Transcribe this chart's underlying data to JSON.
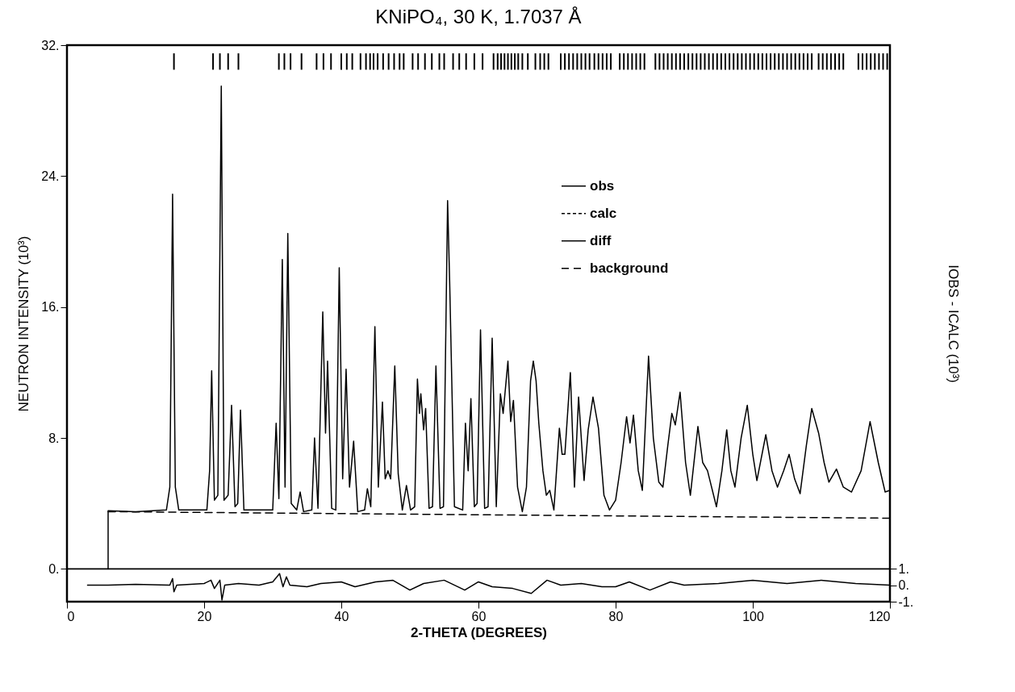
{
  "chart_data": {
    "type": "line",
    "title": "KNiPO₄, 30 K, 1.7037 Å",
    "xlabel": "2-THETA (DEGREES)",
    "ylabel": "NEUTRON INTENSITY (10³)",
    "y2label": "IOBS - ICALC (10³)",
    "xlim": [
      0,
      120
    ],
    "xticks": [
      0,
      20,
      40,
      60,
      80,
      100,
      120
    ],
    "ylim": [
      -2,
      32
    ],
    "yticks": [
      {
        "value": 0,
        "label": "0."
      },
      {
        "value": 8,
        "label": "8."
      },
      {
        "value": 16,
        "label": "16."
      },
      {
        "value": 24,
        "label": "24."
      },
      {
        "value": 32,
        "label": "32."
      }
    ],
    "y2lim": [
      -1,
      32.7
    ],
    "y2ticks": [
      {
        "value": 1,
        "label": "1."
      },
      {
        "value": 0,
        "label": "0."
      },
      {
        "value": -1,
        "label": "-1."
      }
    ],
    "legend": "top right",
    "ref_lines": [
      {
        "axis": "y",
        "value": 0
      }
    ],
    "series": [
      {
        "name": "obs",
        "color": "#000000",
        "line_style": "solid",
        "x": [
          6,
          6,
          10,
          14.5,
          15.0,
          15.4,
          15.8,
          16.3,
          20.4,
          20.8,
          21.1,
          21.5,
          22.0,
          22.5,
          22.9,
          23.5,
          24.0,
          24.5,
          24.9,
          25.3,
          25.8,
          30.0,
          30.5,
          30.9,
          31.4,
          31.8,
          32.2,
          32.7,
          33.5,
          34.0,
          34.5,
          35.7,
          36.1,
          36.6,
          37.3,
          37.7,
          38.0,
          38.6,
          39.2,
          39.7,
          40.2,
          40.7,
          41.2,
          41.8,
          42.4,
          43.4,
          43.8,
          44.3,
          44.9,
          45.4,
          46.0,
          46.4,
          46.8,
          47.2,
          47.8,
          48.3,
          48.9,
          49.5,
          50.1,
          50.7,
          51.1,
          51.4,
          51.6,
          52.0,
          52.3,
          52.8,
          53.3,
          53.8,
          54.4,
          54.9,
          55.5,
          55.8,
          56.5,
          57.7,
          58.1,
          58.5,
          58.9,
          59.4,
          59.8,
          60.3,
          60.9,
          61.4,
          62.0,
          62.6,
          63.2,
          63.6,
          64.3,
          64.7,
          65.1,
          65.7,
          66.4,
          67.0,
          67.6,
          68.0,
          68.4,
          68.8,
          69.4,
          69.9,
          70.4,
          71.0,
          71.8,
          72.2,
          72.6,
          73.4,
          74.0,
          74.6,
          75.4,
          76.0,
          76.7,
          77.5,
          78.3,
          79.1,
          80.0,
          80.8,
          81.6,
          82.1,
          82.6,
          83.3,
          83.9,
          84.8,
          85.5,
          86.3,
          86.9,
          87.6,
          88.2,
          88.7,
          89.4,
          90.2,
          90.9,
          92.0,
          92.7,
          93.4,
          94.7,
          95.5,
          96.2,
          96.8,
          97.4,
          98.3,
          99.2,
          100.0,
          100.6,
          101.9,
          102.8,
          103.6,
          104.5,
          105.3,
          106.1,
          106.9,
          107.8,
          108.6,
          109.6,
          110.4,
          111.1,
          112.2,
          113.2,
          114.4,
          115.8,
          117.1,
          118.3,
          119.3,
          120
        ],
        "values": [
          0,
          3.55,
          3.5,
          3.6,
          5,
          22.9,
          5,
          3.6,
          3.6,
          6,
          12.1,
          4.2,
          4.5,
          29.5,
          4.2,
          4.5,
          10.0,
          3.8,
          4,
          9.7,
          3.6,
          3.6,
          8.9,
          4.3,
          18.9,
          5,
          20.5,
          4,
          3.6,
          4.7,
          3.5,
          3.6,
          8.0,
          3.7,
          15.7,
          8.3,
          12.7,
          3.7,
          3.6,
          18.4,
          5.5,
          12.2,
          5,
          7.8,
          3.5,
          3.6,
          4.9,
          3.8,
          14.8,
          5,
          10.2,
          5.5,
          6,
          5.5,
          12.4,
          5.8,
          3.6,
          5.1,
          3.6,
          3.8,
          11.6,
          9.5,
          10.7,
          8.5,
          9.8,
          3.7,
          3.8,
          12.4,
          3.7,
          3.8,
          22.5,
          17.6,
          3.8,
          3.6,
          8.9,
          6,
          10.4,
          3.8,
          4,
          14.6,
          3.7,
          3.8,
          14.1,
          3.8,
          10.7,
          9.5,
          12.7,
          9,
          10.3,
          5,
          3.5,
          5,
          11.5,
          12.7,
          11.5,
          8.9,
          6,
          4.5,
          4.8,
          3.6,
          8.6,
          7.0,
          7.0,
          12.0,
          5.0,
          10.5,
          5.4,
          8.5,
          10.5,
          8.6,
          4.5,
          3.6,
          4.2,
          6.5,
          9.3,
          7.7,
          9.4,
          6,
          4.8,
          13.0,
          8,
          5.3,
          5.0,
          7.5,
          9.5,
          8.8,
          10.8,
          6.5,
          4.5,
          8.7,
          6.5,
          6.0,
          3.8,
          6,
          8.5,
          6,
          5.0,
          8,
          10.0,
          7,
          5.4,
          8.2,
          6,
          5.0,
          6,
          7.0,
          5.5,
          4.6,
          7.5,
          9.8,
          8.3,
          6.5,
          5.3,
          6.1,
          5.0,
          4.7,
          6,
          9.0,
          6.5,
          4.7,
          4.8
        ]
      },
      {
        "name": "calc",
        "color": "#000000",
        "line_style": "dotted"
      },
      {
        "name": "diff",
        "color": "#000000",
        "line_style": "solid",
        "axis": "y2",
        "x": [
          3,
          6,
          10,
          15,
          15.4,
          15.6,
          16,
          20,
          21,
          21.5,
          22.3,
          22.6,
          23,
          25,
          28,
          30,
          31,
          31.5,
          32,
          32.5,
          35,
          37,
          40,
          42,
          45,
          47.5,
          50,
          52,
          55,
          58,
          60,
          62,
          65,
          67.7,
          70,
          72,
          75,
          78,
          80,
          82,
          85,
          88,
          90,
          95,
          100,
          105,
          110,
          115,
          120
        ],
        "values": [
          0,
          0,
          0.05,
          0,
          0.4,
          -0.4,
          0,
          0.1,
          0.3,
          -0.2,
          0.3,
          -0.9,
          0,
          0.1,
          0,
          0.2,
          0.7,
          -0.1,
          0.5,
          0,
          -0.1,
          0.1,
          0.2,
          -0.1,
          0.2,
          0.3,
          -0.3,
          0.1,
          0.3,
          -0.3,
          0.2,
          -0.1,
          -0.2,
          -0.5,
          0.3,
          0,
          0.1,
          -0.1,
          -0.1,
          0.2,
          -0.3,
          0.2,
          0,
          0.1,
          0.3,
          0.1,
          0.3,
          0.1,
          0
        ]
      },
      {
        "name": "background",
        "color": "#000000",
        "line_style": "dashed",
        "x": [
          6,
          120
        ],
        "values": [
          3.5,
          3.1
        ]
      },
      {
        "type": "bar",
        "color": "#000000",
        "base": [
          30.5,
          30.5,
          30.5,
          30.5,
          30.5,
          30.5,
          30.5,
          30.5,
          30.5,
          30.5,
          30.5,
          30.5,
          30.5,
          30.5,
          30.5,
          30.5,
          30.5,
          30.5,
          30.5,
          30.5,
          30.5,
          30.5,
          30.5,
          30.5,
          30.5,
          30.5,
          30.5,
          30.5,
          30.5,
          30.5,
          30.5,
          30.5,
          30.5,
          30.5,
          30.5,
          30.5,
          30.5,
          30.5,
          30.5,
          30.5,
          30.5,
          30.5,
          30.5,
          30.5,
          30.5,
          30.5,
          30.5,
          30.5,
          30.5,
          30.5,
          30.5,
          30.5,
          30.5,
          30.5,
          30.5,
          30.5,
          30.5,
          30.5,
          30.5,
          30.5,
          30.5,
          30.5,
          30.5,
          30.5,
          30.5,
          30.5,
          30.5,
          30.5,
          30.5,
          30.5,
          30.5,
          30.5,
          30.5,
          30.5,
          30.5,
          30.5,
          30.5,
          30.5,
          30.5,
          30.5,
          30.5,
          30.5,
          30.5,
          30.5,
          30.5,
          30.5,
          30.5,
          30.5,
          30.5,
          30.5,
          30.5,
          30.5,
          30.5,
          30.5,
          30.5,
          30.5,
          30.5,
          30.5,
          30.5,
          30.5,
          30.5,
          30.5,
          30.5,
          30.5,
          30.5,
          30.5,
          30.5,
          30.5,
          30.5,
          30.5,
          30.5,
          30.5,
          30.5,
          30.5,
          30.5,
          30.5,
          30.5,
          30.5,
          30.5,
          30.5,
          30.5,
          30.5,
          30.5,
          30.5
        ],
        "x": [
          15.6,
          21.3,
          22.3,
          23.5,
          25.0,
          30.9,
          31.7,
          32.6,
          34.2,
          36.4,
          37.4,
          38.5,
          40.0,
          40.8,
          41.6,
          42.8,
          43.6,
          44.2,
          44.7,
          45.3,
          46.1,
          46.9,
          47.7,
          48.5,
          49.1,
          50.4,
          51.2,
          52.2,
          53.2,
          54.3,
          55.0,
          56.3,
          57.2,
          58.2,
          59.4,
          60.6,
          62.2,
          62.8,
          63.3,
          63.8,
          64.3,
          64.8,
          65.3,
          65.8,
          66.4,
          67.2,
          68.3,
          69.0,
          69.6,
          70.2,
          72.0,
          72.6,
          73.2,
          73.8,
          74.4,
          75.0,
          75.6,
          76.2,
          76.9,
          77.5,
          78.1,
          78.7,
          79.3,
          80.6,
          81.2,
          81.8,
          82.4,
          83.0,
          83.6,
          84.2,
          85.8,
          86.4,
          87.0,
          87.6,
          88.2,
          88.8,
          89.4,
          90.0,
          90.6,
          91.2,
          91.8,
          92.4,
          93.0,
          93.6,
          94.2,
          94.8,
          95.4,
          96.0,
          96.6,
          97.2,
          97.8,
          98.4,
          99.0,
          99.6,
          100.2,
          100.8,
          101.4,
          102.0,
          102.6,
          103.2,
          103.8,
          104.4,
          105.0,
          105.6,
          106.2,
          106.8,
          107.4,
          108.0,
          108.6,
          109.6,
          110.2,
          110.8,
          111.4,
          112.0,
          112.6,
          113.2,
          115.4,
          116.0,
          116.6,
          117.2,
          117.8,
          118.4,
          119.0,
          119.6
        ],
        "values": [
          1,
          1,
          1,
          1,
          1,
          1,
          1,
          1,
          1,
          1,
          1,
          1,
          1,
          1,
          1,
          1,
          1,
          1,
          1,
          1,
          1,
          1,
          1,
          1,
          1,
          1,
          1,
          1,
          1,
          1,
          1,
          1,
          1,
          1,
          1,
          1,
          1,
          1,
          1,
          1,
          1,
          1,
          1,
          1,
          1,
          1,
          1,
          1,
          1,
          1,
          1,
          1,
          1,
          1,
          1,
          1,
          1,
          1,
          1,
          1,
          1,
          1,
          1,
          1,
          1,
          1,
          1,
          1,
          1,
          1,
          1,
          1,
          1,
          1,
          1,
          1,
          1,
          1,
          1,
          1,
          1,
          1,
          1,
          1,
          1,
          1,
          1,
          1,
          1,
          1,
          1,
          1,
          1,
          1,
          1,
          1,
          1,
          1,
          1,
          1,
          1,
          1,
          1,
          1,
          1,
          1,
          1,
          1,
          1,
          1,
          1,
          1,
          1,
          1,
          1,
          1,
          1,
          1,
          1,
          1,
          1,
          1,
          1,
          1
        ]
      }
    ]
  }
}
